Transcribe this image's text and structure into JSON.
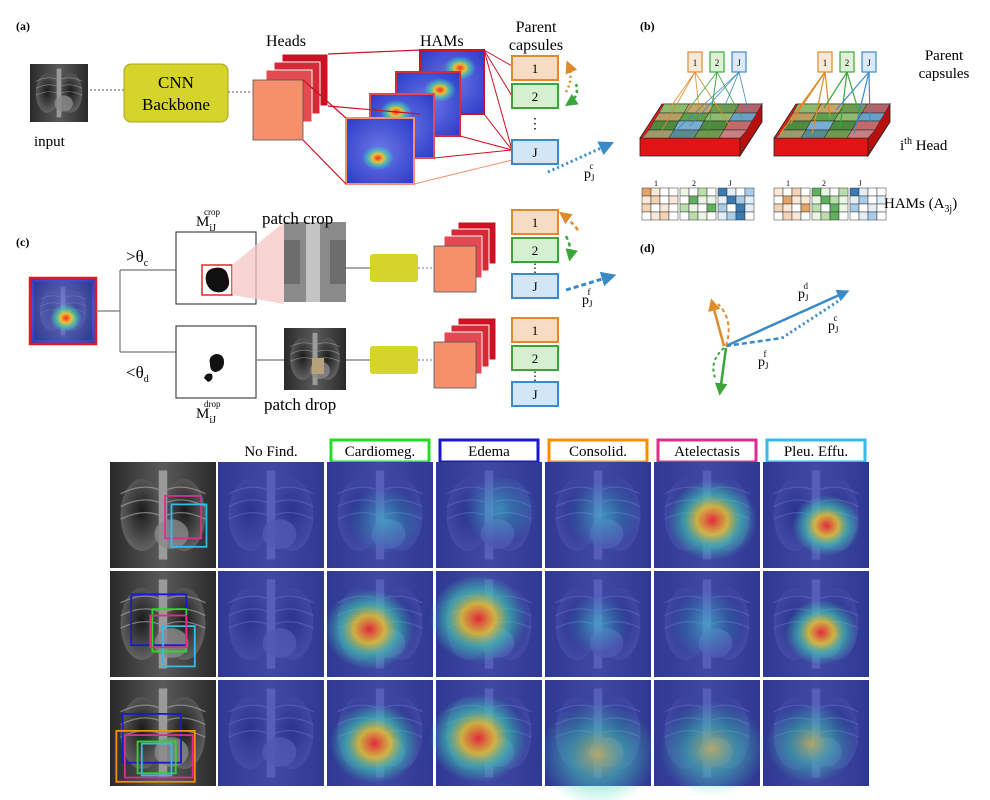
{
  "panel_a": {
    "label": "(a)",
    "input_label": "input",
    "backbone_line1": "CNN",
    "backbone_line2": "Backbone",
    "heads_label": "Heads",
    "hams_label": "HAMs",
    "parent_line1": "Parent",
    "parent_line2": "capsules",
    "capsules": [
      "1",
      "2",
      "J"
    ],
    "ellipsis": "⋮",
    "vector_p": "p",
    "vector_sub": "J",
    "vector_sup": "c"
  },
  "panel_b": {
    "label": "(b)",
    "caps": [
      "1",
      "2",
      "J"
    ],
    "parent_line1": "Parent",
    "parent_line2": "capsules",
    "head_label_prefix": "i",
    "head_label_sup": "th",
    "head_label_suffix": " Head",
    "ham_marks": [
      "1",
      "2",
      "J"
    ],
    "hams_label_prefix": "HAMs (A",
    "hams_label_sub": "3j",
    "hams_label_suffix": ")"
  },
  "panel_c": {
    "label": "(c)",
    "gt_theta": ">θ",
    "gt_sub": "c",
    "lt_theta": "<θ",
    "lt_sub": "d",
    "mask_m": "M",
    "mask_sub": "iJ",
    "mask_crop_sup": "crop",
    "mask_drop_sup": "drop",
    "patch_crop_label": "patch crop",
    "patch_drop_label": "patch drop",
    "capsules": [
      "1",
      "2",
      "J"
    ],
    "ellipsis": "⋮",
    "vector_p": "p",
    "vector_sub": "J",
    "vector_sup": "f"
  },
  "panel_d": {
    "label": "(d)",
    "p": "p",
    "sub": "J",
    "sup_d": "d",
    "sup_c": "c",
    "sup_f": "f"
  },
  "grid": {
    "columns": [
      {
        "label": "No Find.",
        "color": ""
      },
      {
        "label": "Cardiomeg.",
        "color": "#22dd22"
      },
      {
        "label": "Edema",
        "color": "#1a1acc"
      },
      {
        "label": "Consolid.",
        "color": "#ff8c00"
      },
      {
        "label": "Atelectasis",
        "color": "#e02c8c"
      },
      {
        "label": "Pleu. Effu.",
        "color": "#33bbee"
      }
    ]
  },
  "colors": {
    "cap1": "#e08a2c",
    "cap2": "#3aa63a",
    "capJ": "#3a8ac8",
    "backbone": "#d4d42a",
    "head_front": "#f4906c",
    "head_back": "#cc1122"
  }
}
